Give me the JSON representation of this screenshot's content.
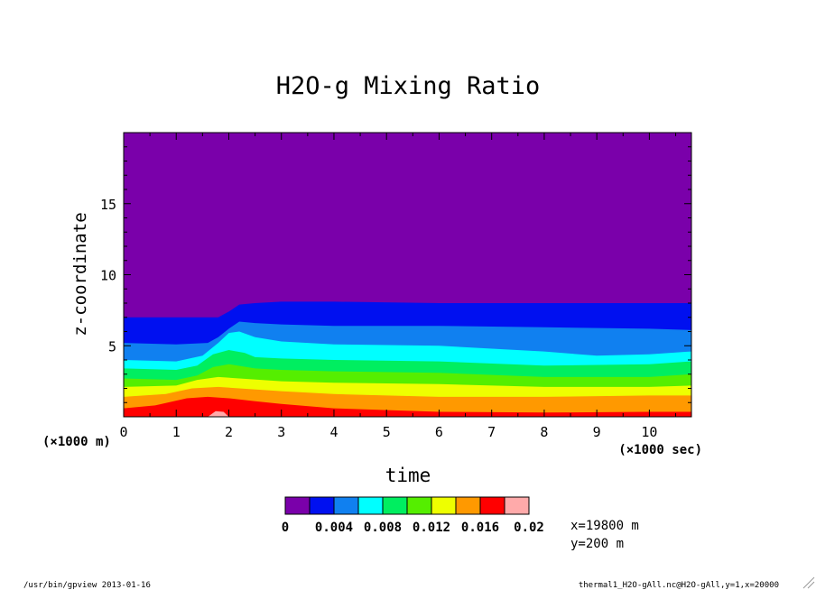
{
  "chart_data": {
    "type": "heatmap",
    "title": "H2O-g Mixing Ratio",
    "xlabel": "time",
    "ylabel": "z-coordinate",
    "x_unit": "(×1000 sec)",
    "y_unit": "(×1000 m)",
    "xlim": [
      0,
      10.8
    ],
    "ylim": [
      0,
      20
    ],
    "x_ticks": [
      "0",
      "1",
      "2",
      "3",
      "4",
      "5",
      "6",
      "7",
      "8",
      "9",
      "10"
    ],
    "y_ticks": [
      "5",
      "10",
      "15"
    ],
    "color_levels": [
      0,
      0.004,
      0.008,
      0.012,
      0.016,
      0.02
    ],
    "colorbar_labels": [
      "0",
      "0.004",
      "0.008",
      "0.012",
      "0.016",
      "0.02"
    ],
    "colors": [
      "#7a00aa",
      "#0010f0",
      "#1080f0",
      "#00ffff",
      "#00ee60",
      "#55ee00",
      "#eeff00",
      "#ff9900",
      "#ff0000",
      "#ffaaaa"
    ],
    "contours": [
      {
        "level": 0.0,
        "color": "#0010f0",
        "top": [
          [
            0,
            7.0
          ],
          [
            1.0,
            7.0
          ],
          [
            1.6,
            7.0
          ],
          [
            1.8,
            7.0
          ],
          [
            2.0,
            7.4
          ],
          [
            2.2,
            7.9
          ],
          [
            2.5,
            8.0
          ],
          [
            3.0,
            8.1
          ],
          [
            4,
            8.1
          ],
          [
            6,
            8.0
          ],
          [
            8,
            8.0
          ],
          [
            10,
            8.0
          ],
          [
            10.8,
            8.0
          ]
        ]
      },
      {
        "level": 0.002,
        "color": "#1080f0",
        "top": [
          [
            0,
            5.2
          ],
          [
            1.0,
            5.1
          ],
          [
            1.6,
            5.2
          ],
          [
            1.8,
            5.6
          ],
          [
            2.0,
            6.2
          ],
          [
            2.2,
            6.7
          ],
          [
            2.5,
            6.6
          ],
          [
            3.0,
            6.5
          ],
          [
            4,
            6.4
          ],
          [
            6,
            6.4
          ],
          [
            8,
            6.3
          ],
          [
            10,
            6.2
          ],
          [
            10.8,
            6.1
          ]
        ]
      },
      {
        "level": 0.004,
        "color": "#00ffff",
        "top": [
          [
            0,
            4.0
          ],
          [
            1.0,
            3.9
          ],
          [
            1.5,
            4.3
          ],
          [
            1.8,
            5.2
          ],
          [
            2.0,
            5.9
          ],
          [
            2.2,
            6.0
          ],
          [
            2.5,
            5.6
          ],
          [
            3.0,
            5.3
          ],
          [
            4,
            5.1
          ],
          [
            6,
            5.0
          ],
          [
            8,
            4.6
          ],
          [
            9,
            4.3
          ],
          [
            10,
            4.4
          ],
          [
            10.8,
            4.6
          ]
        ]
      },
      {
        "level": 0.006,
        "color": "#00ee60",
        "top": [
          [
            0,
            3.4
          ],
          [
            1.0,
            3.3
          ],
          [
            1.4,
            3.6
          ],
          [
            1.7,
            4.4
          ],
          [
            2.0,
            4.7
          ],
          [
            2.3,
            4.5
          ],
          [
            2.5,
            4.2
          ],
          [
            3.0,
            4.1
          ],
          [
            4,
            4.0
          ],
          [
            6,
            3.9
          ],
          [
            8,
            3.6
          ],
          [
            10,
            3.7
          ],
          [
            10.8,
            3.9
          ]
        ]
      },
      {
        "level": 0.008,
        "color": "#55ee00",
        "top": [
          [
            0,
            2.7
          ],
          [
            1.0,
            2.6
          ],
          [
            1.4,
            2.9
          ],
          [
            1.7,
            3.5
          ],
          [
            2.0,
            3.7
          ],
          [
            2.5,
            3.4
          ],
          [
            3.0,
            3.3
          ],
          [
            4,
            3.2
          ],
          [
            6,
            3.1
          ],
          [
            8,
            2.8
          ],
          [
            10,
            2.8
          ],
          [
            10.8,
            3.0
          ]
        ]
      },
      {
        "level": 0.01,
        "color": "#eeff00",
        "top": [
          [
            0,
            2.1
          ],
          [
            1.0,
            2.2
          ],
          [
            1.4,
            2.6
          ],
          [
            1.8,
            2.8
          ],
          [
            2.2,
            2.7
          ],
          [
            3.0,
            2.5
          ],
          [
            4,
            2.4
          ],
          [
            6,
            2.3
          ],
          [
            8,
            2.1
          ],
          [
            10,
            2.1
          ],
          [
            10.8,
            2.2
          ]
        ]
      },
      {
        "level": 0.012,
        "color": "#ff9900",
        "top": [
          [
            0,
            1.4
          ],
          [
            0.8,
            1.6
          ],
          [
            1.3,
            2.0
          ],
          [
            1.8,
            2.1
          ],
          [
            2.2,
            2.0
          ],
          [
            3.0,
            1.8
          ],
          [
            4,
            1.6
          ],
          [
            6,
            1.4
          ],
          [
            8,
            1.4
          ],
          [
            10,
            1.5
          ],
          [
            10.8,
            1.5
          ]
        ]
      },
      {
        "level": 0.016,
        "color": "#ff0000",
        "top": [
          [
            0,
            0.6
          ],
          [
            0.6,
            0.8
          ],
          [
            1.2,
            1.3
          ],
          [
            1.6,
            1.4
          ],
          [
            2.0,
            1.3
          ],
          [
            2.5,
            1.1
          ],
          [
            3.0,
            0.9
          ],
          [
            4,
            0.6
          ],
          [
            6,
            0.35
          ],
          [
            8,
            0.3
          ],
          [
            10,
            0.35
          ],
          [
            10.8,
            0.35
          ]
        ]
      },
      {
        "level": 0.018,
        "color": "#ffaaaa",
        "top": [
          [
            1.6,
            0
          ],
          [
            1.75,
            0.4
          ],
          [
            1.9,
            0.35
          ],
          [
            2.0,
            0
          ]
        ]
      }
    ]
  },
  "annotations": {
    "position_x": "x=19800 m",
    "position_y": "y=200 m"
  },
  "footer": {
    "left": "/usr/bin/gpview  2013-01-16",
    "right": "thermal1_H2O-gAll.nc@H2O-gAll,y=1,x=20000"
  }
}
